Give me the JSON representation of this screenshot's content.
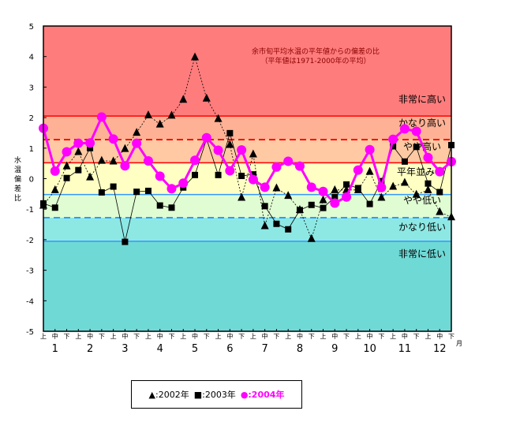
{
  "chart_data": {
    "type": "line",
    "title": "余市旬平均水温の平年値からの偏差の比",
    "subtitle": "（平年値は1971-2000年の平均）",
    "ylabel": "水温偏差比",
    "ylim": [
      -5,
      5
    ],
    "yticks": [
      "5",
      "4",
      "3",
      "2",
      "1",
      "0",
      "-1",
      "-2",
      "-3",
      "-4",
      "-5"
    ],
    "xlabel_unit": "月",
    "dekads": [
      "上",
      "中",
      "下"
    ],
    "months": [
      "1",
      "2",
      "3",
      "4",
      "5",
      "6",
      "7",
      "8",
      "9",
      "10",
      "11",
      "12"
    ],
    "bands": [
      {
        "label": "非常に高い",
        "from": 2.05,
        "to": 5,
        "color": "#ff7c7c"
      },
      {
        "label": "かなり高い",
        "from": 1.28,
        "to": 2.05,
        "color": "#ffb195"
      },
      {
        "label": "やや高い",
        "from": 0.52,
        "to": 1.28,
        "color": "#ffc9a3"
      },
      {
        "label": "平年並み",
        "from": -0.52,
        "to": 0.52,
        "color": "#ffffc4"
      },
      {
        "label": "やや低い",
        "from": -1.28,
        "to": -0.52,
        "color": "#e0fcd2"
      },
      {
        "label": "かなり低い",
        "from": -2.05,
        "to": -1.28,
        "color": "#8de8e4"
      },
      {
        "label": "非常に低い",
        "from": -5,
        "to": -2.05,
        "color": "#6fd9d6"
      }
    ],
    "series": [
      {
        "name": "▲:2002年",
        "marker": "triangle",
        "color": "#000000",
        "dashed": true,
        "values": [
          -0.88,
          -0.37,
          0.41,
          0.88,
          0.05,
          0.59,
          0.57,
          0.98,
          1.51,
          2.08,
          1.78,
          2.07,
          2.59,
          3.98,
          2.63,
          1.96,
          1.11,
          -0.62,
          0.8,
          -1.55,
          -0.31,
          -0.56,
          -1.02,
          -1.97,
          -0.7,
          -0.37,
          -0.37,
          -0.37,
          0.23,
          -0.62,
          -0.26,
          -0.13,
          -0.52,
          -0.37,
          -1.09,
          -1.26
        ]
      },
      {
        "name": "■:2003年",
        "marker": "square",
        "color": "#000000",
        "dashed": false,
        "values": [
          -0.81,
          -0.95,
          0.02,
          0.28,
          1.0,
          -0.45,
          -0.26,
          -2.07,
          -0.43,
          -0.4,
          -0.88,
          -0.95,
          -0.29,
          0.12,
          1.3,
          0.12,
          1.49,
          0.09,
          0.14,
          -0.9,
          -1.48,
          -1.66,
          -1.03,
          -0.86,
          -0.96,
          -0.6,
          -0.19,
          -0.31,
          -0.83,
          -0.08,
          1.06,
          0.56,
          1.04,
          -0.16,
          -0.44,
          1.1
        ]
      },
      {
        "name": "●:2004年",
        "marker": "circle",
        "color": "#ff00ff",
        "dashed": false,
        "values": [
          1.65,
          0.25,
          0.88,
          1.16,
          1.17,
          2.02,
          1.3,
          0.42,
          1.16,
          0.58,
          0.08,
          -0.33,
          -0.15,
          0.6,
          1.34,
          0.93,
          0.26,
          0.94,
          -0.03,
          -0.28,
          0.38,
          0.57,
          0.41,
          -0.28,
          -0.42,
          -0.8,
          -0.6,
          0.28,
          0.95,
          -0.29,
          1.29,
          1.63,
          1.55,
          0.69,
          0.23,
          0.56
        ]
      }
    ]
  }
}
